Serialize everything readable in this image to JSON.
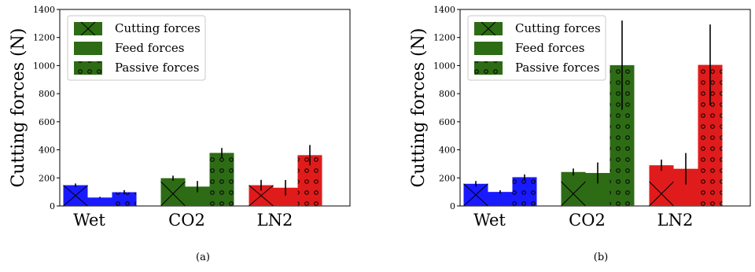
{
  "chart_data": [
    {
      "type": "bar",
      "caption": "(a)",
      "ylabel": "Cutting forces (N)",
      "ylim": [
        0,
        1400
      ],
      "yticks": [
        0,
        200,
        400,
        600,
        800,
        1000,
        1200,
        1400
      ],
      "categories": [
        "Wet",
        "CO2",
        "LN2"
      ],
      "category_colors": [
        "#1a1aff",
        "#2d6b15",
        "#e01b1b"
      ],
      "legend_position": "top-left",
      "series": [
        {
          "name": "Cutting forces",
          "pattern": "cross",
          "values": [
            148,
            198,
            148
          ],
          "errors": [
            12,
            18,
            38
          ]
        },
        {
          "name": "Feed forces",
          "pattern": "solid",
          "values": [
            60,
            138,
            130
          ],
          "errors": [
            5,
            40,
            55
          ]
        },
        {
          "name": "Passive forces",
          "pattern": "circles",
          "values": [
            98,
            378,
            362
          ],
          "errors": [
            15,
            35,
            72
          ]
        }
      ]
    },
    {
      "type": "bar",
      "caption": "(b)",
      "ylabel": "",
      "ylim": [
        0,
        1400
      ],
      "yticks": [
        0,
        200,
        400,
        600,
        800,
        1000,
        1200,
        1400
      ],
      "categories": [
        "Wet",
        "CO2",
        "LN2"
      ],
      "category_colors": [
        "#1a1aff",
        "#2d6b15",
        "#e01b1b"
      ],
      "legend_position": "top-left",
      "series": [
        {
          "name": "Cutting forces",
          "pattern": "cross",
          "values": [
            158,
            242,
            290
          ],
          "errors": [
            20,
            25,
            40
          ]
        },
        {
          "name": "Feed forces",
          "pattern": "solid",
          "values": [
            100,
            235,
            265
          ],
          "errors": [
            12,
            75,
            112
          ]
        },
        {
          "name": "Passive forces",
          "pattern": "circles",
          "values": [
            205,
            1003,
            1005
          ],
          "errors": [
            20,
            318,
            288
          ]
        }
      ]
    }
  ],
  "legend_swatch_color": "#2d6b15"
}
